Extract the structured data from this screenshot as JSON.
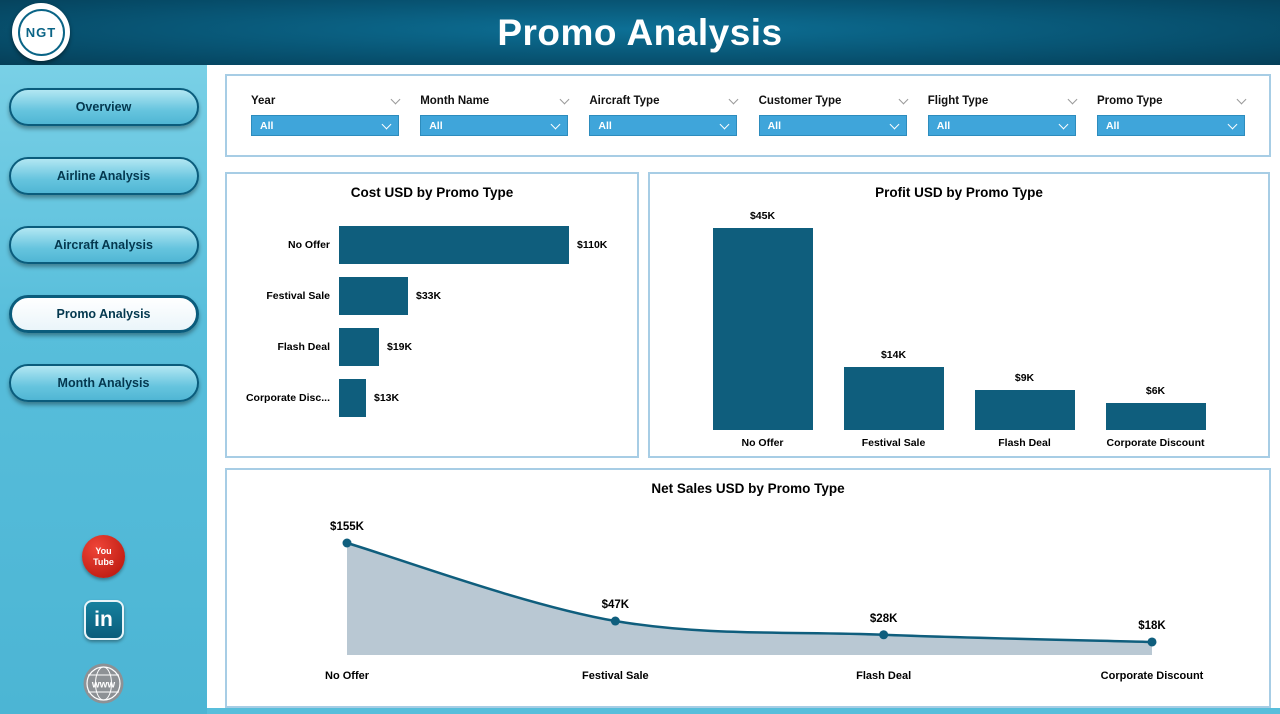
{
  "header": {
    "title": "Promo Analysis",
    "logo_text": "NGT"
  },
  "sidebar": {
    "items": [
      {
        "label": "Overview",
        "active": false
      },
      {
        "label": "Airline Analysis",
        "active": false
      },
      {
        "label": "Aircraft Analysis",
        "active": false
      },
      {
        "label": "Promo Analysis",
        "active": true
      },
      {
        "label": "Month Analysis",
        "active": false
      }
    ],
    "social": [
      {
        "name": "youtube",
        "text": "You Tube"
      },
      {
        "name": "linkedin",
        "text": "in"
      },
      {
        "name": "website",
        "text": "www"
      }
    ]
  },
  "filters": [
    {
      "label": "Year",
      "value": "All"
    },
    {
      "label": "Month Name",
      "value": "All"
    },
    {
      "label": "Aircraft Type",
      "value": "All"
    },
    {
      "label": "Customer Type",
      "value": "All"
    },
    {
      "label": "Flight Type",
      "value": "All"
    },
    {
      "label": "Promo Type",
      "value": "All"
    }
  ],
  "chart_data": [
    {
      "type": "bar",
      "orientation": "horizontal",
      "title": "Cost USD by Promo Type",
      "categories": [
        "No Offer",
        "Festival Sale",
        "Flash Deal",
        "Corporate Disc..."
      ],
      "values": [
        110,
        33,
        19,
        13
      ],
      "labels": [
        "$110K",
        "$33K",
        "$19K",
        "$13K"
      ],
      "unit": "USD (thousands)",
      "bar_color": "#0f5e7d"
    },
    {
      "type": "bar",
      "orientation": "vertical",
      "title": "Profit USD by Promo Type",
      "categories": [
        "No Offer",
        "Festival Sale",
        "Flash Deal",
        "Corporate Discount"
      ],
      "values": [
        45,
        14,
        9,
        6
      ],
      "labels": [
        "$45K",
        "$14K",
        "$9K",
        "$6K"
      ],
      "unit": "USD (thousands)",
      "bar_color": "#0f5e7d"
    },
    {
      "type": "area",
      "title": "Net Sales USD by Promo Type",
      "categories": [
        "No Offer",
        "Festival Sale",
        "Flash Deal",
        "Corporate Discount"
      ],
      "values": [
        155,
        47,
        28,
        18
      ],
      "labels": [
        "$155K",
        "$47K",
        "$28K",
        "$18K"
      ],
      "unit": "USD (thousands)",
      "line_color": "#0f5e7d",
      "fill_color": "#b9c8d3"
    }
  ],
  "colors": {
    "header_teal": "#07506e",
    "sidebar_cyan": "#58bedb",
    "bar_teal": "#0f5e7d",
    "dropdown_blue": "#3fa5da",
    "panel_border": "#a7cde5",
    "youtube_red": "#d6291e",
    "linkedin_teal": "#0e7490",
    "website_gray": "#8d9195"
  }
}
